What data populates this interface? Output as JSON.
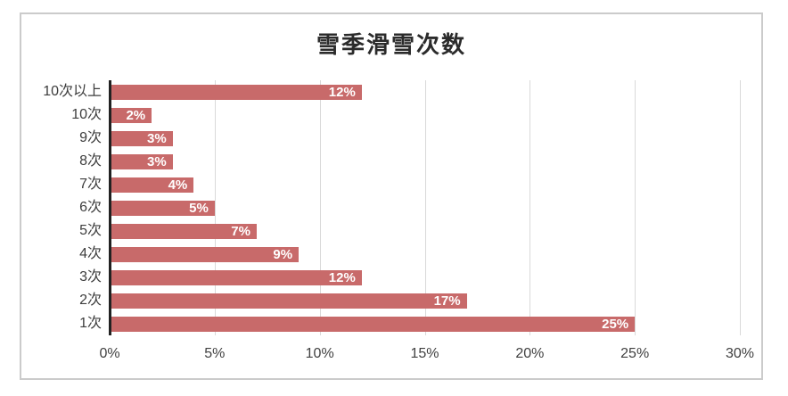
{
  "chart_data": {
    "type": "bar",
    "orientation": "horizontal",
    "title": "雪季滑雪次数",
    "categories": [
      "10次以上",
      "10次",
      "9次",
      "8次",
      "7次",
      "6次",
      "5次",
      "4次",
      "3次",
      "2次",
      "1次"
    ],
    "values": [
      12,
      2,
      3,
      3,
      4,
      5,
      7,
      9,
      12,
      17,
      25
    ],
    "value_labels": [
      "12%",
      "2%",
      "3%",
      "3%",
      "4%",
      "5%",
      "7%",
      "9%",
      "12%",
      "17%",
      "25%"
    ],
    "x_tick_labels": [
      "0%",
      "5%",
      "10%",
      "15%",
      "20%",
      "25%",
      "30%"
    ],
    "x_tick_values": [
      0,
      5,
      10,
      15,
      20,
      25,
      30
    ],
    "xlim": [
      0,
      30
    ],
    "grid": true,
    "legend": "none",
    "value_label_position": "inside-end",
    "colors": {
      "bar_fill": "#c86a6a",
      "value_label_text": "#ffffff",
      "gridline": "#d9d9d9",
      "category_axis_line": "#222222",
      "frame_border": "#cbcbcb",
      "title_text": "#2b2b2b",
      "tick_text": "#404040",
      "background": "#ffffff"
    }
  }
}
